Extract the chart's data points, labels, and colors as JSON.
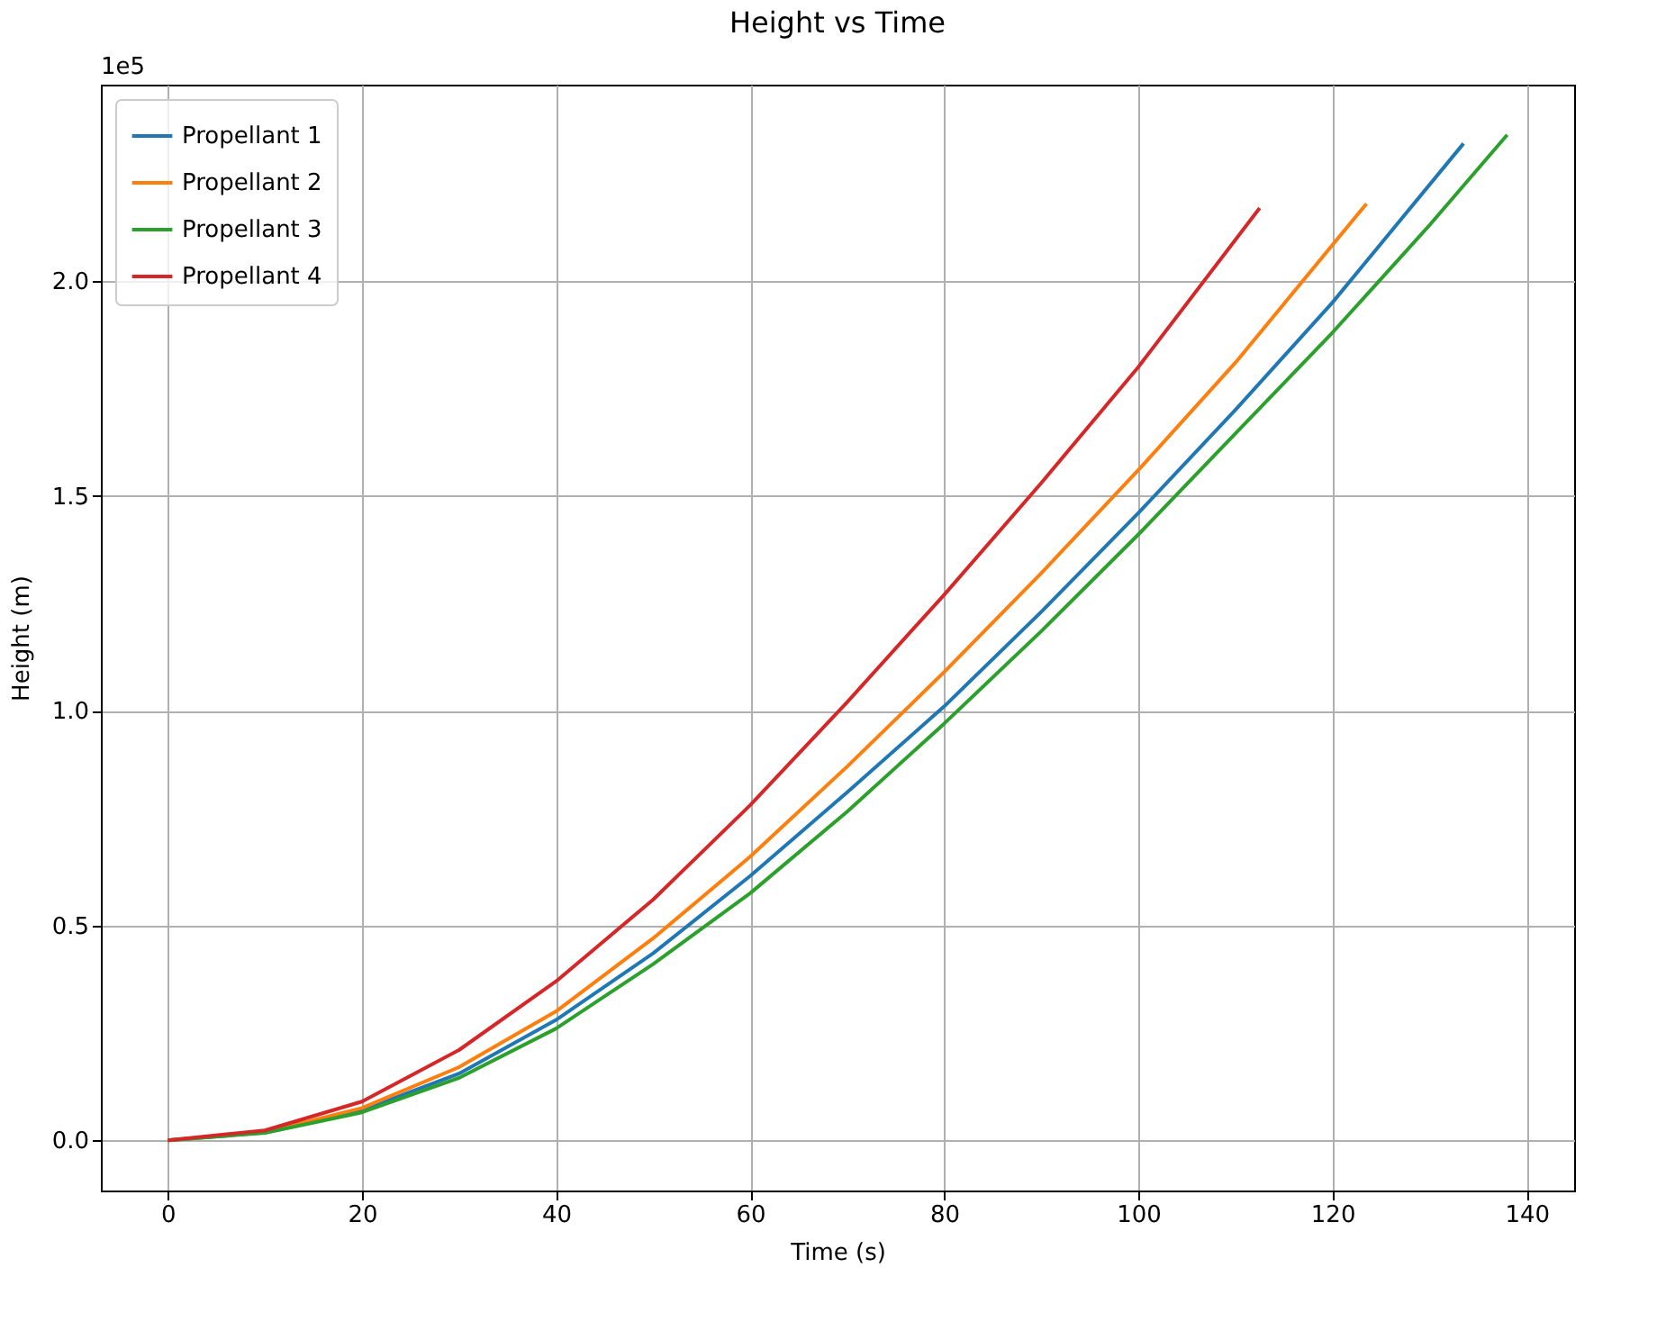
{
  "chart_data": {
    "type": "line",
    "title": "Height vs Time",
    "xlabel": "Time (s)",
    "ylabel": "Height (m)",
    "annotations": [
      "1e5"
    ],
    "xlim": [
      -6.9,
      144.9
    ],
    "xticks": [
      0,
      20,
      40,
      60,
      80,
      100,
      120,
      140
    ],
    "ylim": [
      -0.117,
      2.457
    ],
    "yticks": [
      {
        "value": 0,
        "label": "0.0"
      },
      0.5,
      {
        "value": 1,
        "label": "1.0"
      },
      1.5,
      {
        "value": 2,
        "label": "2.0"
      }
    ],
    "grid": true,
    "legend": "top left",
    "line_style": "solid",
    "marker": "none",
    "series": [
      {
        "name": "Propellant 1",
        "color": "#1f77b4",
        "x": [
          0,
          10,
          20,
          30,
          40,
          50,
          60,
          70,
          80,
          90,
          100,
          110,
          120,
          133.5
        ],
        "values": [
          0,
          0.018,
          0.07,
          0.155,
          0.28,
          0.435,
          0.615,
          0.81,
          1.01,
          1.23,
          1.46,
          1.7,
          1.95,
          2.32
        ]
      },
      {
        "name": "Propellant 2",
        "color": "#ff7f0e",
        "x": [
          0,
          10,
          20,
          30,
          40,
          50,
          60,
          70,
          80,
          90,
          100,
          110,
          123.5
        ],
        "values": [
          0,
          0.019,
          0.075,
          0.17,
          0.3,
          0.47,
          0.66,
          0.87,
          1.09,
          1.32,
          1.56,
          1.81,
          2.18
        ]
      },
      {
        "name": "Propellant 3",
        "color": "#2ca02c",
        "x": [
          0,
          10,
          20,
          30,
          40,
          50,
          60,
          70,
          80,
          90,
          100,
          110,
          120,
          130,
          138
        ],
        "values": [
          0,
          0.017,
          0.065,
          0.145,
          0.26,
          0.41,
          0.575,
          0.765,
          0.97,
          1.185,
          1.41,
          1.645,
          1.88,
          2.13,
          2.34
        ]
      },
      {
        "name": "Propellant 4",
        "color": "#d62728",
        "x": [
          0,
          10,
          20,
          30,
          40,
          50,
          60,
          70,
          80,
          90,
          100,
          112.5
        ],
        "values": [
          0,
          0.023,
          0.09,
          0.21,
          0.37,
          0.56,
          0.78,
          1.02,
          1.27,
          1.53,
          1.8,
          2.17
        ]
      }
    ]
  }
}
